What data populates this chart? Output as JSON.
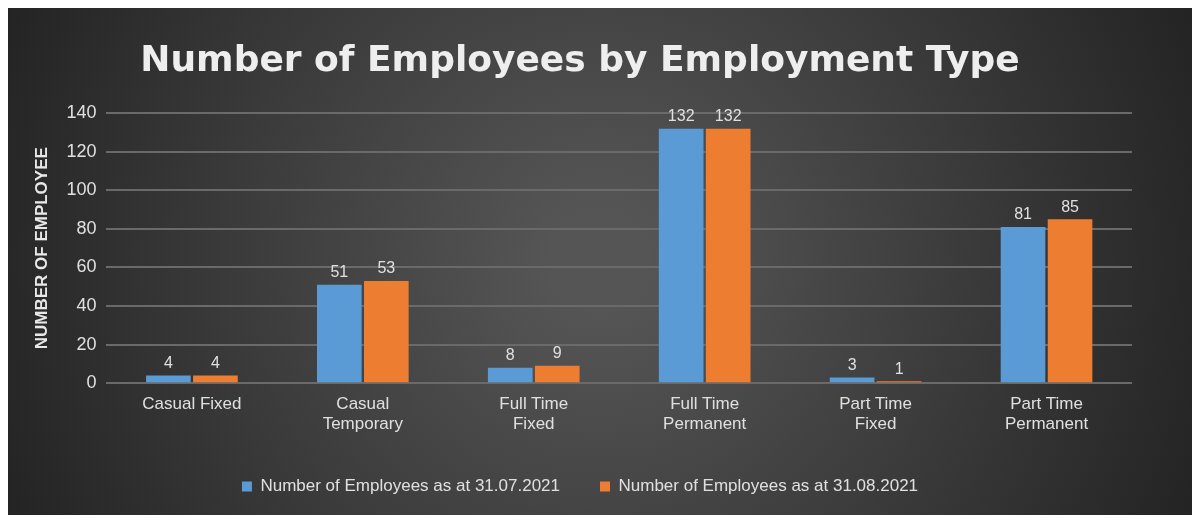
{
  "chart_data": {
    "type": "bar",
    "title": "Number of Employees by Employment Type",
    "ylabel": "NUMBER OF EMPLOYEE",
    "categories": [
      "Casual Fixed",
      "Casual Temporary",
      "Full Time Fixed",
      "Full Time Permanent",
      "Part Time Fixed",
      "Part Time Permanent"
    ],
    "series": [
      {
        "name": "Number of Employees as at 31.07.2021",
        "color": "#5b9bd5",
        "values": [
          4,
          51,
          8,
          132,
          3,
          81
        ]
      },
      {
        "name": "Number of Employees as at 31.08.2021",
        "color": "#ed7d31",
        "values": [
          4,
          53,
          9,
          132,
          1,
          85
        ]
      }
    ],
    "ylim": [
      0,
      140
    ],
    "yticks": [
      0,
      20,
      40,
      60,
      80,
      100,
      120,
      140
    ],
    "grid": "y",
    "legend": "bottom",
    "data_labels": true
  }
}
